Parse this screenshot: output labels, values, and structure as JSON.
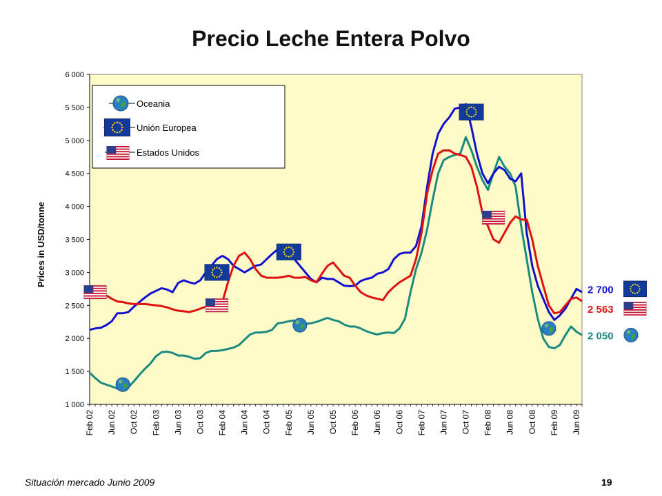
{
  "slide": {
    "title": "Precio Leche Entera Polvo",
    "footer_text": "Situación mercado Junio 2009",
    "page_number": "19"
  },
  "chart_data": {
    "type": "line",
    "title": "Precio Leche Entera Polvo",
    "ylabel": "Prices in USD/tonne",
    "xlabel": "",
    "ylim": [
      1000,
      6000
    ],
    "yticks": [
      1000,
      1500,
      2000,
      2500,
      3000,
      3500,
      4000,
      4500,
      5000,
      5500,
      6000
    ],
    "ytick_labels": [
      "1 000",
      "1 500",
      "2 000",
      "2 500",
      "3 000",
      "3 500",
      "4 000",
      "4 500",
      "5 000",
      "5 500",
      "6 000"
    ],
    "x_axis": "months since Feb 02",
    "xlim": [
      0,
      89
    ],
    "xticks": [
      0,
      4,
      8,
      12,
      16,
      20,
      24,
      28,
      32,
      36,
      40,
      44,
      48,
      52,
      56,
      60,
      64,
      68,
      72,
      76,
      80,
      84,
      88
    ],
    "xtick_labels": [
      "Feb 02",
      "Jun 02",
      "Oct 02",
      "Feb 03",
      "Jun 03",
      "Oct 03",
      "Feb 04",
      "Jun 04",
      "Oct 04",
      "Feb 05",
      "Jun 05",
      "Oct 05",
      "Feb 06",
      "Jun 06",
      "Oct 06",
      "Feb 07",
      "Jun 07",
      "Oct 07",
      "Feb 08",
      "Jun 08",
      "Oct 08",
      "Feb 09",
      "Jun 09"
    ],
    "grid": false,
    "background": "#FFFBC8",
    "legend_position": "top-left",
    "series": [
      {
        "name": "Oceania",
        "color": "#1A8A80",
        "icon": "globe-icon",
        "points": [
          [
            0,
            1480
          ],
          [
            1,
            1400
          ],
          [
            2,
            1330
          ],
          [
            3,
            1300
          ],
          [
            4,
            1270
          ],
          [
            5,
            1240
          ],
          [
            6,
            1240
          ],
          [
            7,
            1260
          ],
          [
            8,
            1350
          ],
          [
            9,
            1450
          ],
          [
            10,
            1540
          ],
          [
            11,
            1620
          ],
          [
            12,
            1730
          ],
          [
            13,
            1790
          ],
          [
            14,
            1800
          ],
          [
            15,
            1780
          ],
          [
            16,
            1740
          ],
          [
            17,
            1740
          ],
          [
            18,
            1720
          ],
          [
            19,
            1690
          ],
          [
            20,
            1700
          ],
          [
            21,
            1780
          ],
          [
            22,
            1810
          ],
          [
            23,
            1810
          ],
          [
            24,
            1820
          ],
          [
            25,
            1840
          ],
          [
            26,
            1860
          ],
          [
            27,
            1900
          ],
          [
            28,
            1980
          ],
          [
            29,
            2060
          ],
          [
            30,
            2090
          ],
          [
            31,
            2090
          ],
          [
            32,
            2100
          ],
          [
            33,
            2130
          ],
          [
            34,
            2230
          ],
          [
            35,
            2240
          ],
          [
            36,
            2260
          ],
          [
            37,
            2270
          ],
          [
            38,
            2250
          ],
          [
            39,
            2220
          ],
          [
            40,
            2230
          ],
          [
            41,
            2250
          ],
          [
            42,
            2280
          ],
          [
            43,
            2310
          ],
          [
            44,
            2280
          ],
          [
            45,
            2260
          ],
          [
            46,
            2210
          ],
          [
            47,
            2180
          ],
          [
            48,
            2180
          ],
          [
            49,
            2150
          ],
          [
            50,
            2110
          ],
          [
            51,
            2080
          ],
          [
            52,
            2060
          ],
          [
            53,
            2080
          ],
          [
            54,
            2090
          ],
          [
            55,
            2080
          ],
          [
            56,
            2150
          ],
          [
            57,
            2300
          ],
          [
            58,
            2700
          ],
          [
            59,
            3050
          ],
          [
            60,
            3300
          ],
          [
            61,
            3650
          ],
          [
            62,
            4100
          ],
          [
            63,
            4500
          ],
          [
            64,
            4700
          ],
          [
            65,
            4750
          ],
          [
            66,
            4780
          ],
          [
            67,
            4800
          ],
          [
            68,
            5050
          ],
          [
            69,
            4850
          ],
          [
            70,
            4600
          ],
          [
            71,
            4400
          ],
          [
            72,
            4250
          ],
          [
            73,
            4500
          ],
          [
            74,
            4750
          ],
          [
            75,
            4600
          ],
          [
            76,
            4500
          ],
          [
            77,
            4300
          ],
          [
            78,
            3700
          ],
          [
            79,
            3200
          ],
          [
            80,
            2700
          ],
          [
            81,
            2300
          ],
          [
            82,
            2000
          ],
          [
            83,
            1870
          ],
          [
            84,
            1850
          ],
          [
            85,
            1900
          ],
          [
            86,
            2050
          ],
          [
            87,
            2180
          ],
          [
            88,
            2100
          ],
          [
            89,
            2050
          ]
        ]
      },
      {
        "name": "Unión Europea",
        "color": "#1010D0",
        "icon": "eu-flag-icon",
        "points": [
          [
            0,
            2130
          ],
          [
            1,
            2150
          ],
          [
            2,
            2160
          ],
          [
            3,
            2200
          ],
          [
            4,
            2260
          ],
          [
            5,
            2380
          ],
          [
            6,
            2380
          ],
          [
            7,
            2400
          ],
          [
            8,
            2480
          ],
          [
            9,
            2550
          ],
          [
            10,
            2620
          ],
          [
            11,
            2680
          ],
          [
            12,
            2720
          ],
          [
            13,
            2760
          ],
          [
            14,
            2740
          ],
          [
            15,
            2700
          ],
          [
            16,
            2840
          ],
          [
            17,
            2880
          ],
          [
            18,
            2850
          ],
          [
            19,
            2830
          ],
          [
            20,
            2880
          ],
          [
            21,
            3000
          ],
          [
            22,
            3100
          ],
          [
            23,
            3200
          ],
          [
            24,
            3250
          ],
          [
            25,
            3200
          ],
          [
            26,
            3100
          ],
          [
            27,
            3050
          ],
          [
            28,
            3000
          ],
          [
            29,
            3050
          ],
          [
            30,
            3100
          ],
          [
            31,
            3120
          ],
          [
            32,
            3200
          ],
          [
            33,
            3280
          ],
          [
            34,
            3350
          ],
          [
            35,
            3330
          ],
          [
            36,
            3300
          ],
          [
            37,
            3200
          ],
          [
            38,
            3100
          ],
          [
            39,
            3000
          ],
          [
            40,
            2900
          ],
          [
            41,
            2850
          ],
          [
            42,
            2920
          ],
          [
            43,
            2900
          ],
          [
            44,
            2900
          ],
          [
            45,
            2850
          ],
          [
            46,
            2800
          ],
          [
            47,
            2790
          ],
          [
            48,
            2800
          ],
          [
            49,
            2870
          ],
          [
            50,
            2900
          ],
          [
            51,
            2920
          ],
          [
            52,
            2980
          ],
          [
            53,
            3000
          ],
          [
            54,
            3050
          ],
          [
            55,
            3200
          ],
          [
            56,
            3280
          ],
          [
            57,
            3300
          ],
          [
            58,
            3300
          ],
          [
            59,
            3400
          ],
          [
            60,
            3700
          ],
          [
            61,
            4300
          ],
          [
            62,
            4800
          ],
          [
            63,
            5100
          ],
          [
            64,
            5250
          ],
          [
            65,
            5350
          ],
          [
            66,
            5480
          ],
          [
            67,
            5500
          ],
          [
            68,
            5550
          ],
          [
            69,
            5200
          ],
          [
            70,
            4800
          ],
          [
            71,
            4500
          ],
          [
            72,
            4350
          ],
          [
            73,
            4500
          ],
          [
            74,
            4600
          ],
          [
            75,
            4550
          ],
          [
            76,
            4420
          ],
          [
            77,
            4380
          ],
          [
            78,
            4500
          ],
          [
            79,
            3600
          ],
          [
            80,
            3100
          ],
          [
            81,
            2800
          ],
          [
            82,
            2600
          ],
          [
            83,
            2400
          ],
          [
            84,
            2280
          ],
          [
            85,
            2350
          ],
          [
            86,
            2450
          ],
          [
            87,
            2600
          ],
          [
            88,
            2750
          ],
          [
            89,
            2700
          ]
        ]
      },
      {
        "name": "Estados Unidos",
        "color": "#E01010",
        "icon": "us-flag-icon",
        "points": [
          [
            0,
            2740
          ],
          [
            1,
            2750
          ],
          [
            2,
            2700
          ],
          [
            3,
            2650
          ],
          [
            4,
            2600
          ],
          [
            5,
            2560
          ],
          [
            6,
            2550
          ],
          [
            7,
            2530
          ],
          [
            8,
            2520
          ],
          [
            9,
            2520
          ],
          [
            10,
            2520
          ],
          [
            11,
            2510
          ],
          [
            12,
            2500
          ],
          [
            13,
            2490
          ],
          [
            14,
            2470
          ],
          [
            15,
            2440
          ],
          [
            16,
            2420
          ],
          [
            17,
            2410
          ],
          [
            18,
            2400
          ],
          [
            19,
            2420
          ],
          [
            20,
            2450
          ],
          [
            21,
            2480
          ],
          [
            22,
            2500
          ],
          [
            23,
            2520
          ],
          [
            24,
            2550
          ],
          [
            25,
            2850
          ],
          [
            26,
            3100
          ],
          [
            27,
            3250
          ],
          [
            28,
            3300
          ],
          [
            29,
            3200
          ],
          [
            30,
            3050
          ],
          [
            31,
            2950
          ],
          [
            32,
            2920
          ],
          [
            33,
            2920
          ],
          [
            34,
            2920
          ],
          [
            35,
            2930
          ],
          [
            36,
            2950
          ],
          [
            37,
            2920
          ],
          [
            38,
            2920
          ],
          [
            39,
            2930
          ],
          [
            40,
            2880
          ],
          [
            41,
            2850
          ],
          [
            42,
            2980
          ],
          [
            43,
            3100
          ],
          [
            44,
            3150
          ],
          [
            45,
            3050
          ],
          [
            46,
            2950
          ],
          [
            47,
            2920
          ],
          [
            48,
            2800
          ],
          [
            49,
            2700
          ],
          [
            50,
            2650
          ],
          [
            51,
            2620
          ],
          [
            52,
            2600
          ],
          [
            53,
            2580
          ],
          [
            54,
            2700
          ],
          [
            55,
            2780
          ],
          [
            56,
            2850
          ],
          [
            57,
            2900
          ],
          [
            58,
            2950
          ],
          [
            59,
            3200
          ],
          [
            60,
            3600
          ],
          [
            61,
            4200
          ],
          [
            62,
            4550
          ],
          [
            63,
            4800
          ],
          [
            64,
            4850
          ],
          [
            65,
            4850
          ],
          [
            66,
            4800
          ],
          [
            67,
            4780
          ],
          [
            68,
            4750
          ],
          [
            69,
            4600
          ],
          [
            70,
            4300
          ],
          [
            71,
            3900
          ],
          [
            72,
            3700
          ],
          [
            73,
            3500
          ],
          [
            74,
            3450
          ],
          [
            75,
            3600
          ],
          [
            76,
            3750
          ],
          [
            77,
            3850
          ],
          [
            78,
            3800
          ],
          [
            79,
            3800
          ],
          [
            80,
            3500
          ],
          [
            81,
            3100
          ],
          [
            82,
            2800
          ],
          [
            83,
            2500
          ],
          [
            84,
            2380
          ],
          [
            85,
            2400
          ],
          [
            86,
            2500
          ],
          [
            87,
            2600
          ],
          [
            88,
            2620
          ],
          [
            89,
            2563
          ]
        ]
      }
    ],
    "end_labels": [
      {
        "series": "Unión Europea",
        "text": "2 700",
        "color": "#1010D0",
        "icon": "eu-flag-icon",
        "y": 2750
      },
      {
        "series": "Estados Unidos",
        "text": "2 563",
        "color": "#E01010",
        "icon": "us-flag-icon",
        "y": 2450
      },
      {
        "series": "Oceania",
        "text": "2 050",
        "color": "#1A8A80",
        "icon": "globe-icon",
        "y": 2050
      }
    ],
    "markers": [
      {
        "icon": "us-flag-icon",
        "x": 1,
        "y": 2700
      },
      {
        "icon": "globe-icon",
        "x": 6,
        "y": 1300
      },
      {
        "icon": "eu-flag-icon",
        "x": 23,
        "y": 3000
      },
      {
        "icon": "us-flag-icon",
        "x": 23,
        "y": 2500
      },
      {
        "icon": "eu-flag-icon",
        "x": 36,
        "y": 3310
      },
      {
        "icon": "globe-icon",
        "x": 38,
        "y": 2200
      },
      {
        "icon": "eu-flag-icon",
        "x": 69,
        "y": 5430
      },
      {
        "icon": "us-flag-icon",
        "x": 73,
        "y": 3830
      },
      {
        "icon": "globe-icon",
        "x": 83,
        "y": 2150
      }
    ]
  }
}
